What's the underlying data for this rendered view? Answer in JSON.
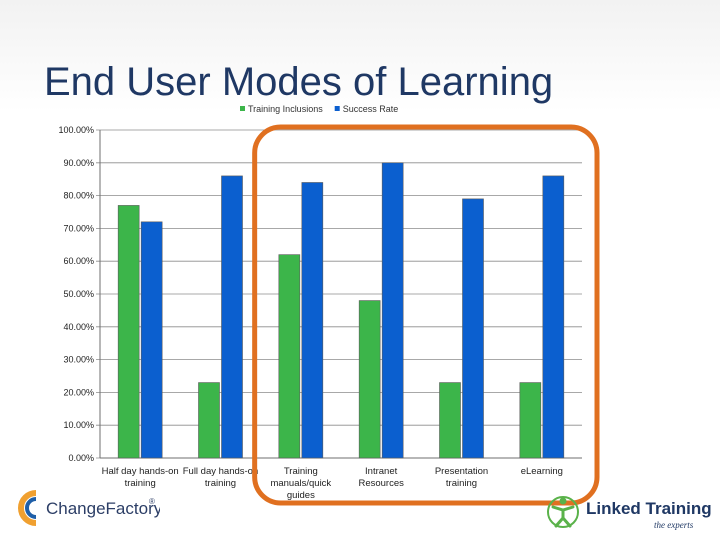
{
  "slide": {
    "title": "End User Modes of Learning"
  },
  "chart_data": {
    "type": "bar",
    "categories": [
      [
        "Half day hands-on",
        "training"
      ],
      [
        "Full day hands-on",
        "training"
      ],
      [
        "Training",
        "manuals/quick",
        "guides"
      ],
      [
        "Intranet",
        "Resources"
      ],
      [
        "Presentation",
        "training"
      ],
      [
        "eLearning"
      ]
    ],
    "series": [
      {
        "name": "Training Inclusions",
        "color": "#3cb54a",
        "values": [
          0.77,
          0.23,
          0.62,
          0.48,
          0.23,
          0.23
        ]
      },
      {
        "name": "Success Rate",
        "color": "#0b5fcf",
        "values": [
          0.72,
          0.86,
          0.84,
          0.9,
          0.79,
          0.86
        ]
      }
    ],
    "ylim": [
      0,
      1
    ],
    "yticks": [
      "0.00%",
      "10.00%",
      "20.00%",
      "30.00%",
      "40.00%",
      "50.00%",
      "60.00%",
      "70.00%",
      "80.00%",
      "90.00%",
      "100.00%"
    ],
    "grid": true,
    "legend_position": "top",
    "highlight": {
      "from_category": 2,
      "to_category": 5,
      "color": "#e07020"
    }
  },
  "logos": {
    "left": {
      "text": "ChangeFactory",
      "mark": "®",
      "colors": [
        "#f0a030",
        "#1f5fa8",
        "#2c3e66"
      ]
    },
    "right": {
      "text": "Linked Training",
      "tagline": "the experts",
      "colors": [
        "#5ab24a",
        "#1f3864"
      ]
    }
  }
}
